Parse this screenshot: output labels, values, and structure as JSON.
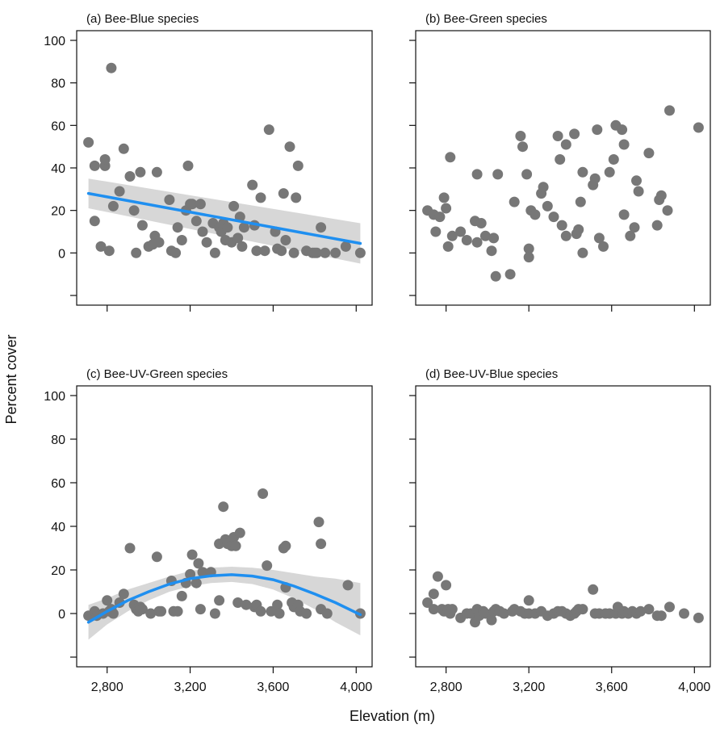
{
  "figure": {
    "ylabel": "Percent  cover",
    "xlabel": "Elevation (m)"
  },
  "colors": {
    "points": "#777777",
    "fit_line": "#1f8ff0",
    "ci_band": "#d3d3d3",
    "axis": "#111111"
  },
  "chart_data": [
    {
      "type": "scatter",
      "title": "(a) Bee-Blue species",
      "xlim": [
        2700,
        4030
      ],
      "ylim": [
        -20,
        100
      ],
      "xticks": [
        2800,
        3200,
        3600,
        4000
      ],
      "xtick_labels": [],
      "yticks": [
        0,
        20,
        40,
        60,
        80,
        100
      ],
      "ytick_labels": [
        "0",
        "20",
        "40",
        "60",
        "80",
        "100"
      ],
      "extra_ytick": [
        -20
      ],
      "grid": false,
      "fit": {
        "type": "linear",
        "x": [
          2710,
          4020
        ],
        "y": [
          28,
          4.5
        ],
        "ci_low": [
          21,
          -5
        ],
        "ci_high": [
          35,
          14
        ]
      },
      "points": [
        [
          2710,
          52
        ],
        [
          2740,
          41
        ],
        [
          2740,
          15
        ],
        [
          2770,
          3
        ],
        [
          2790,
          41
        ],
        [
          2790,
          44
        ],
        [
          2810,
          1
        ],
        [
          2820,
          87
        ],
        [
          2830,
          22
        ],
        [
          2860,
          29
        ],
        [
          2880,
          49
        ],
        [
          2910,
          36
        ],
        [
          2930,
          20
        ],
        [
          2940,
          0
        ],
        [
          2960,
          38
        ],
        [
          2970,
          13
        ],
        [
          3000,
          3
        ],
        [
          3020,
          4
        ],
        [
          3030,
          8
        ],
        [
          3040,
          38
        ],
        [
          3050,
          5
        ],
        [
          3100,
          25
        ],
        [
          3110,
          1
        ],
        [
          3130,
          0
        ],
        [
          3140,
          12
        ],
        [
          3160,
          6
        ],
        [
          3180,
          20
        ],
        [
          3190,
          41
        ],
        [
          3200,
          23
        ],
        [
          3210,
          23
        ],
        [
          3230,
          15
        ],
        [
          3250,
          23
        ],
        [
          3260,
          10
        ],
        [
          3280,
          5
        ],
        [
          3310,
          14
        ],
        [
          3320,
          0
        ],
        [
          3340,
          12
        ],
        [
          3350,
          10
        ],
        [
          3360,
          14
        ],
        [
          3370,
          6
        ],
        [
          3380,
          12
        ],
        [
          3400,
          5
        ],
        [
          3410,
          22
        ],
        [
          3430,
          7
        ],
        [
          3440,
          17
        ],
        [
          3450,
          3
        ],
        [
          3460,
          12
        ],
        [
          3500,
          32
        ],
        [
          3510,
          13
        ],
        [
          3520,
          1
        ],
        [
          3540,
          26
        ],
        [
          3560,
          1
        ],
        [
          3580,
          58
        ],
        [
          3610,
          10
        ],
        [
          3620,
          2
        ],
        [
          3640,
          1
        ],
        [
          3650,
          28
        ],
        [
          3660,
          6
        ],
        [
          3680,
          50
        ],
        [
          3700,
          0
        ],
        [
          3710,
          26
        ],
        [
          3720,
          41
        ],
        [
          3760,
          1
        ],
        [
          3790,
          0
        ],
        [
          3800,
          0
        ],
        [
          3810,
          0
        ],
        [
          3830,
          12
        ],
        [
          3850,
          0
        ],
        [
          3900,
          0
        ],
        [
          3950,
          3
        ],
        [
          4020,
          0
        ]
      ]
    },
    {
      "type": "scatter",
      "title": "(b) Bee-Green species",
      "xlim": [
        2700,
        4030
      ],
      "ylim": [
        -20,
        100
      ],
      "xticks": [
        2800,
        3200,
        3600,
        4000
      ],
      "xtick_labels": [],
      "yticks": [
        0,
        20,
        40,
        60,
        80,
        100
      ],
      "ytick_labels": [],
      "extra_ytick": [
        -20
      ],
      "grid": false,
      "points": [
        [
          2710,
          20
        ],
        [
          2740,
          18
        ],
        [
          2750,
          10
        ],
        [
          2770,
          17
        ],
        [
          2790,
          26
        ],
        [
          2800,
          21
        ],
        [
          2810,
          3
        ],
        [
          2820,
          45
        ],
        [
          2830,
          8
        ],
        [
          2870,
          10
        ],
        [
          2900,
          6
        ],
        [
          2940,
          15
        ],
        [
          2950,
          5
        ],
        [
          2950,
          37
        ],
        [
          2970,
          14
        ],
        [
          2990,
          8
        ],
        [
          3020,
          1
        ],
        [
          3030,
          7
        ],
        [
          3040,
          -11
        ],
        [
          3050,
          37
        ],
        [
          3110,
          -10
        ],
        [
          3130,
          24
        ],
        [
          3160,
          55
        ],
        [
          3170,
          50
        ],
        [
          3190,
          37
        ],
        [
          3200,
          2
        ],
        [
          3200,
          -2
        ],
        [
          3210,
          20
        ],
        [
          3230,
          18
        ],
        [
          3260,
          28
        ],
        [
          3270,
          31
        ],
        [
          3290,
          22
        ],
        [
          3320,
          17
        ],
        [
          3340,
          55
        ],
        [
          3350,
          44
        ],
        [
          3360,
          13
        ],
        [
          3380,
          8
        ],
        [
          3380,
          51
        ],
        [
          3420,
          56
        ],
        [
          3430,
          9
        ],
        [
          3440,
          11
        ],
        [
          3450,
          24
        ],
        [
          3460,
          0
        ],
        [
          3460,
          38
        ],
        [
          3510,
          32
        ],
        [
          3520,
          35
        ],
        [
          3530,
          58
        ],
        [
          3540,
          7
        ],
        [
          3560,
          3
        ],
        [
          3590,
          38
        ],
        [
          3610,
          44
        ],
        [
          3620,
          60
        ],
        [
          3650,
          58
        ],
        [
          3660,
          18
        ],
        [
          3660,
          51
        ],
        [
          3690,
          8
        ],
        [
          3710,
          12
        ],
        [
          3720,
          34
        ],
        [
          3730,
          29
        ],
        [
          3780,
          47
        ],
        [
          3820,
          13
        ],
        [
          3830,
          25
        ],
        [
          3840,
          27
        ],
        [
          3870,
          20
        ],
        [
          3880,
          67
        ],
        [
          4020,
          59
        ]
      ]
    },
    {
      "type": "scatter",
      "title": "(c) Bee-UV-Green species",
      "xlim": [
        2700,
        4030
      ],
      "ylim": [
        -20,
        100
      ],
      "xticks": [
        2800,
        3200,
        3600,
        4000
      ],
      "xtick_labels": [
        "2,800",
        "3,200",
        "3,600",
        "4,000"
      ],
      "yticks": [
        0,
        20,
        40,
        60,
        80,
        100
      ],
      "ytick_labels": [
        "0",
        "20",
        "40",
        "60",
        "80",
        "100"
      ],
      "extra_ytick": [
        -20
      ],
      "grid": false,
      "fit": {
        "type": "quadratic",
        "x": [
          2710,
          2800,
          2900,
          3000,
          3100,
          3200,
          3300,
          3400,
          3500,
          3600,
          3700,
          3800,
          3900,
          4020
        ],
        "y": [
          -4,
          1,
          6,
          10,
          13.5,
          16,
          17.3,
          17.8,
          17.2,
          15.5,
          12.6,
          9,
          5,
          -0.5
        ],
        "ci_low": [
          -12,
          -5,
          1,
          6,
          10,
          12.5,
          14,
          14.5,
          13.5,
          11,
          7,
          2,
          -4,
          -10
        ],
        "ci_high": [
          4,
          7,
          11,
          14,
          17,
          19.5,
          21,
          21.5,
          21,
          20,
          18.5,
          17,
          16,
          14
        ]
      },
      "points": [
        [
          2710,
          -1
        ],
        [
          2740,
          1
        ],
        [
          2750,
          -1
        ],
        [
          2780,
          0
        ],
        [
          2800,
          6
        ],
        [
          2810,
          1
        ],
        [
          2820,
          2
        ],
        [
          2830,
          0
        ],
        [
          2860,
          5
        ],
        [
          2880,
          9
        ],
        [
          2910,
          30
        ],
        [
          2930,
          4
        ],
        [
          2940,
          2
        ],
        [
          2950,
          1
        ],
        [
          2960,
          3
        ],
        [
          2970,
          2
        ],
        [
          3010,
          0
        ],
        [
          3040,
          26
        ],
        [
          3050,
          1
        ],
        [
          3060,
          1
        ],
        [
          3110,
          15
        ],
        [
          3120,
          1
        ],
        [
          3140,
          1
        ],
        [
          3160,
          8
        ],
        [
          3180,
          14
        ],
        [
          3200,
          18
        ],
        [
          3210,
          27
        ],
        [
          3230,
          14
        ],
        [
          3240,
          23
        ],
        [
          3250,
          2
        ],
        [
          3260,
          19
        ],
        [
          3300,
          19
        ],
        [
          3320,
          0
        ],
        [
          3340,
          32
        ],
        [
          3340,
          6
        ],
        [
          3360,
          49
        ],
        [
          3370,
          34
        ],
        [
          3380,
          32
        ],
        [
          3400,
          31
        ],
        [
          3410,
          35
        ],
        [
          3420,
          31
        ],
        [
          3430,
          5
        ],
        [
          3440,
          37
        ],
        [
          3470,
          4
        ],
        [
          3510,
          3
        ],
        [
          3520,
          4
        ],
        [
          3540,
          1
        ],
        [
          3550,
          55
        ],
        [
          3570,
          22
        ],
        [
          3590,
          1
        ],
        [
          3620,
          4
        ],
        [
          3630,
          0
        ],
        [
          3650,
          30
        ],
        [
          3660,
          31
        ],
        [
          3660,
          12
        ],
        [
          3690,
          5
        ],
        [
          3700,
          3
        ],
        [
          3720,
          4
        ],
        [
          3730,
          1
        ],
        [
          3760,
          0
        ],
        [
          3820,
          42
        ],
        [
          3830,
          32
        ],
        [
          3830,
          2
        ],
        [
          3860,
          0
        ],
        [
          3960,
          13
        ],
        [
          4020,
          0
        ]
      ]
    },
    {
      "type": "scatter",
      "title": "(d) Bee-UV-Blue species",
      "xlim": [
        2700,
        4030
      ],
      "ylim": [
        -20,
        100
      ],
      "xticks": [
        2800,
        3200,
        3600,
        4000
      ],
      "xtick_labels": [
        "2,800",
        "3,200",
        "3,600",
        "4,000"
      ],
      "yticks": [
        0,
        20,
        40,
        60,
        80,
        100
      ],
      "ytick_labels": [],
      "extra_ytick": [
        -20
      ],
      "grid": false,
      "points": [
        [
          2710,
          5
        ],
        [
          2740,
          2
        ],
        [
          2740,
          9
        ],
        [
          2760,
          17
        ],
        [
          2780,
          2
        ],
        [
          2790,
          1
        ],
        [
          2800,
          13
        ],
        [
          2810,
          2
        ],
        [
          2820,
          0
        ],
        [
          2830,
          2
        ],
        [
          2870,
          -2
        ],
        [
          2900,
          0
        ],
        [
          2920,
          0
        ],
        [
          2940,
          -4
        ],
        [
          2950,
          2
        ],
        [
          2960,
          -1
        ],
        [
          2980,
          1
        ],
        [
          2990,
          0
        ],
        [
          3020,
          -3
        ],
        [
          3030,
          1
        ],
        [
          3040,
          2
        ],
        [
          3060,
          1
        ],
        [
          3080,
          0
        ],
        [
          3120,
          1
        ],
        [
          3130,
          2
        ],
        [
          3160,
          1
        ],
        [
          3180,
          0
        ],
        [
          3200,
          6
        ],
        [
          3200,
          0
        ],
        [
          3230,
          0
        ],
        [
          3260,
          1
        ],
        [
          3290,
          -1
        ],
        [
          3320,
          0
        ],
        [
          3340,
          1
        ],
        [
          3360,
          1
        ],
        [
          3380,
          0
        ],
        [
          3400,
          -1
        ],
        [
          3420,
          0
        ],
        [
          3430,
          1
        ],
        [
          3440,
          2
        ],
        [
          3460,
          2
        ],
        [
          3510,
          11
        ],
        [
          3520,
          0
        ],
        [
          3540,
          0
        ],
        [
          3570,
          0
        ],
        [
          3590,
          0
        ],
        [
          3620,
          0
        ],
        [
          3630,
          3
        ],
        [
          3650,
          0
        ],
        [
          3660,
          1
        ],
        [
          3680,
          0
        ],
        [
          3700,
          1
        ],
        [
          3720,
          0
        ],
        [
          3740,
          1
        ],
        [
          3780,
          2
        ],
        [
          3820,
          -1
        ],
        [
          3840,
          -1
        ],
        [
          3880,
          3
        ],
        [
          3950,
          0
        ],
        [
          4020,
          -2
        ]
      ]
    }
  ]
}
